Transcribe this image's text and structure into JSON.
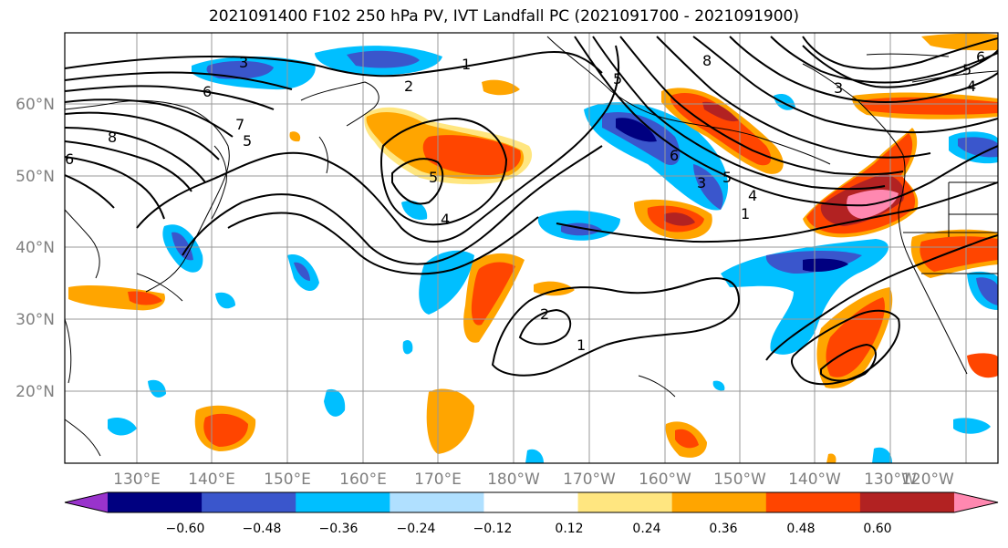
{
  "title": "2021091400 F102 250 hPa PV, IVT Landfall PC (2021091700 - 2021091900)",
  "lat_labels": [
    "60°N",
    "50°N",
    "40°N",
    "30°N",
    "20°N"
  ],
  "lon_labels": [
    "130°E",
    "140°E",
    "150°E",
    "160°E",
    "170°E",
    "180°W",
    "170°W",
    "160°W",
    "150°W",
    "140°W",
    "130°W",
    "120°W"
  ],
  "contour_labels": [
    "3",
    "1",
    "2",
    "6",
    "7",
    "8",
    "5",
    "6",
    "5",
    "4",
    "1",
    "2",
    "1",
    "8",
    "5",
    "3",
    "3",
    "6",
    "5",
    "4",
    "5",
    "6",
    "4"
  ],
  "colorbar": {
    "tick_labels": [
      "−0.60",
      "−0.48",
      "−0.36",
      "−0.24",
      "−0.12",
      "0.12",
      "0.24",
      "0.36",
      "0.48",
      "0.60"
    ],
    "colors": [
      "#9933cc",
      "#000080",
      "#3a56cc",
      "#00bfff",
      "#b0e0ff",
      "#ffffff",
      "#ffe680",
      "#ffa500",
      "#ff4500",
      "#b22222",
      "#ff88b0"
    ]
  }
}
